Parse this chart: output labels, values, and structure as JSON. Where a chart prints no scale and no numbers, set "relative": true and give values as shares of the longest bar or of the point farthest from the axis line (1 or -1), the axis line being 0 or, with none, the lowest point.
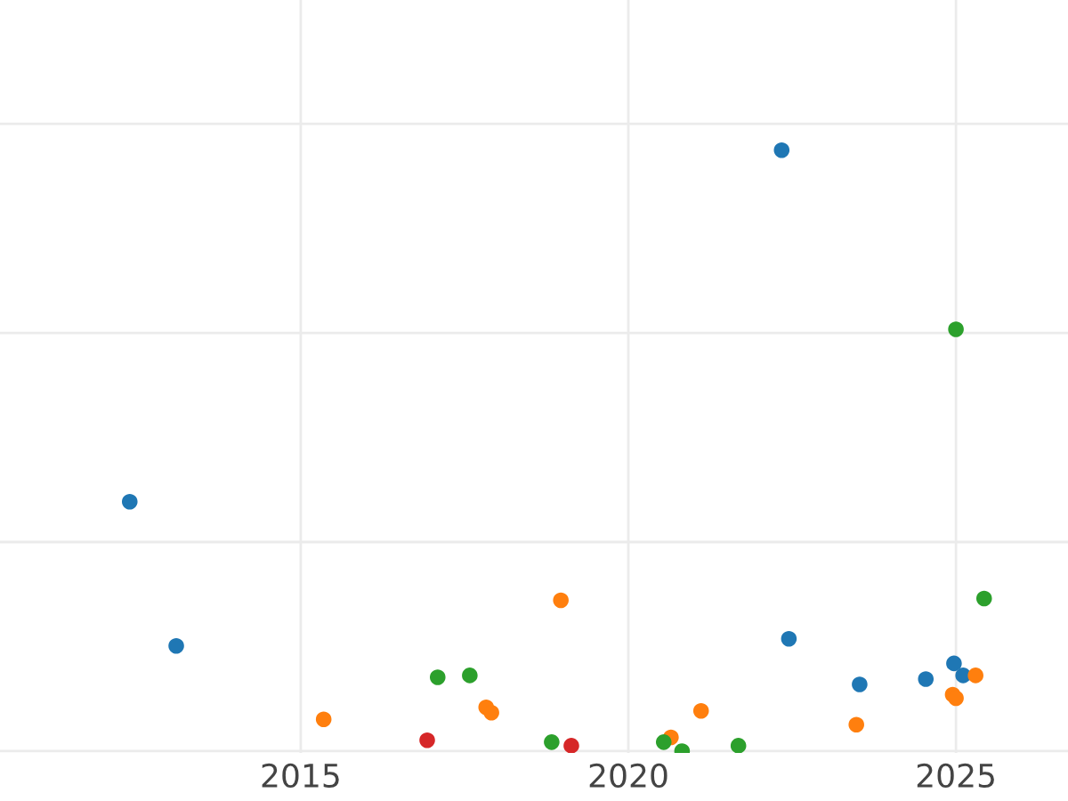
{
  "chart_data": {
    "type": "scatter",
    "relative": true,
    "grid": true,
    "xlim": [
      2010.41,
      2026.71
    ],
    "xticks": [
      2015,
      2020,
      2025
    ],
    "series": [
      {
        "color": "#1f77b4",
        "x": [
          2012.39,
          2013.1,
          2022.34,
          2022.45,
          2023.53,
          2024.54,
          2024.97,
          2025.11
        ],
        "values": [
          0.415,
          0.175,
          1.0,
          0.187,
          0.111,
          0.12,
          0.146,
          0.126
        ]
      },
      {
        "color": "#ff7f0e",
        "x": [
          2015.35,
          2017.83,
          2017.91,
          2018.97,
          2020.65,
          2021.11,
          2023.48,
          2024.95,
          2025.0,
          2025.3
        ],
        "values": [
          0.053,
          0.073,
          0.064,
          0.251,
          0.023,
          0.067,
          0.044,
          0.094,
          0.088,
          0.126
        ]
      },
      {
        "color": "#2ca02c",
        "x": [
          2017.09,
          2017.58,
          2018.83,
          2020.54,
          2020.82,
          2021.68,
          2025.0,
          2025.43
        ],
        "values": [
          0.123,
          0.126,
          0.015,
          0.015,
          0.0,
          0.009,
          0.702,
          0.254
        ]
      },
      {
        "color": "#d62728",
        "x": [
          2016.93,
          2019.13
        ],
        "values": [
          0.018,
          0.009
        ]
      }
    ]
  }
}
